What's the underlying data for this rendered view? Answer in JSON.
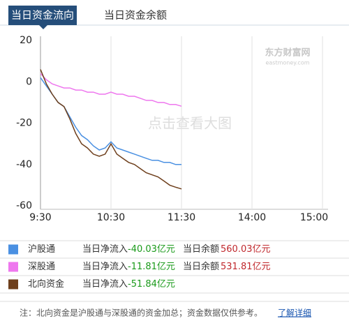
{
  "tabs": [
    "当日资金流向",
    "当日资金余额"
  ],
  "chart_data": {
    "type": "line",
    "watermark": "点击查看大图",
    "logo": {
      "name": "东方财富网",
      "url": "eastmoney.com"
    },
    "x": [
      0,
      5,
      10,
      15,
      20,
      25,
      30,
      35,
      40,
      45,
      50,
      55,
      60,
      65,
      70,
      75,
      80,
      85,
      90,
      95,
      100,
      105,
      110,
      115,
      120
    ],
    "xlim": [
      0,
      240
    ],
    "xticks": [
      {
        "value": 0,
        "label": "9:30"
      },
      {
        "value": 60,
        "label": "10:30"
      },
      {
        "value": 120,
        "label": "11:30"
      },
      {
        "value": 180,
        "label": "14:00"
      },
      {
        "value": 240,
        "label": "15:00"
      }
    ],
    "ylim": [
      -60,
      20
    ],
    "yticks": [
      20,
      0,
      -20,
      -40,
      -60
    ],
    "grid": true,
    "series": [
      {
        "name": "沪股通",
        "color": "#4a90e2",
        "values": [
          2,
          -2,
          -6,
          -10,
          -12,
          -17,
          -22,
          -26,
          -28,
          -31,
          -33,
          -32,
          -29,
          -32,
          -33,
          -34,
          -35,
          -36,
          -37,
          -38,
          -38,
          -39,
          -39,
          -40,
          -40.03
        ]
      },
      {
        "name": "深股通",
        "color": "#ee77ee",
        "values": [
          4,
          1,
          -1,
          -2,
          -3,
          -3,
          -4,
          -4,
          -5,
          -5,
          -6,
          -6,
          -5,
          -6,
          -6,
          -7,
          -7,
          -8,
          -9,
          -9,
          -10,
          -10,
          -11,
          -11,
          -11.81
        ]
      },
      {
        "name": "北向资金",
        "color": "#6e3f1c",
        "values": [
          6,
          -1,
          -6,
          -10,
          -12,
          -18,
          -25,
          -30,
          -32,
          -35,
          -36,
          -35,
          -30,
          -35,
          -37,
          -39,
          -40,
          -42,
          -44,
          -45,
          -46,
          -48,
          -50,
          -51,
          -51.84
        ]
      }
    ]
  },
  "legend_table": {
    "rows": [
      {
        "name": "沪股通",
        "flow_label": "当日净流入",
        "flow": "-40.03亿元",
        "balance_label": "当日余额",
        "balance": "560.03亿元"
      },
      {
        "name": "深股通",
        "flow_label": "当日净流入",
        "flow": "-11.81亿元",
        "balance_label": "当日余额",
        "balance": "531.81亿元"
      },
      {
        "name": "北向资金",
        "flow_label": "当日净流入",
        "flow": "-51.84亿元"
      }
    ]
  },
  "note": {
    "text": "注：北向资金是沪股通与深股通的资金加总；资金数据仅供参考。",
    "link": "了解详细"
  }
}
